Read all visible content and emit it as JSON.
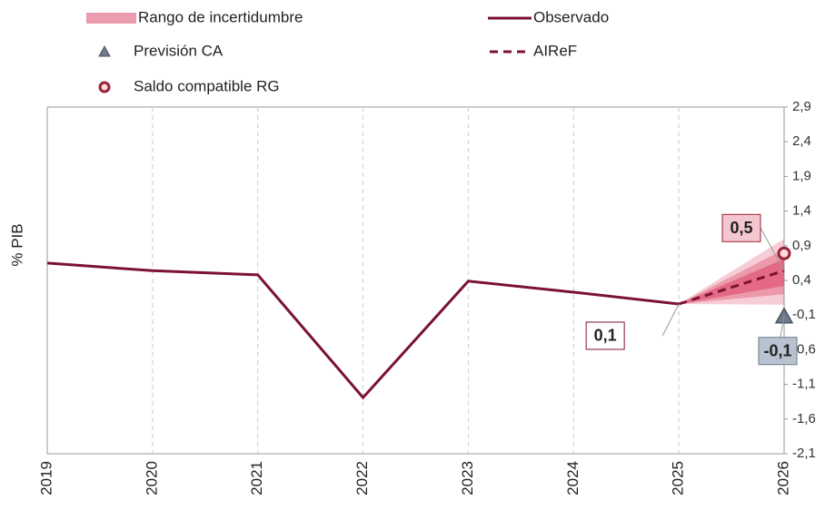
{
  "chart_data": {
    "type": "line",
    "y_label": "% PIB",
    "categories": [
      "2019",
      "2020",
      "2021",
      "2022",
      "2023",
      "2024",
      "2025",
      "2026"
    ],
    "ylim": [
      -2.1,
      2.9
    ],
    "yticks": [
      {
        "value": 2.9,
        "label": "2,9"
      },
      {
        "value": 2.4,
        "label": "2,4"
      },
      {
        "value": 1.9,
        "label": "1,9"
      },
      {
        "value": 1.4,
        "label": "1,4"
      },
      {
        "value": 0.9,
        "label": "0,9"
      },
      {
        "value": 0.4,
        "label": "0,4"
      },
      {
        "value": -0.1,
        "label": "-0,1"
      },
      {
        "value": -0.6,
        "label": "-0,6"
      },
      {
        "value": -1.1,
        "label": "-1,1"
      },
      {
        "value": -1.6,
        "label": "-1,6"
      },
      {
        "value": -2.1,
        "label": "-2,1"
      }
    ],
    "grid": true,
    "series": [
      {
        "name": "Rango de incertidumbre",
        "kind": "band",
        "color": "#e05a78",
        "bands": [
          {
            "low": [
              null,
              null,
              null,
              null,
              null,
              null,
              0.06,
              0.05
            ],
            "high": [
              null,
              null,
              null,
              null,
              null,
              null,
              0.06,
              1.0
            ]
          },
          {
            "low": [
              null,
              null,
              null,
              null,
              null,
              null,
              0.06,
              0.2
            ],
            "high": [
              null,
              null,
              null,
              null,
              null,
              null,
              0.06,
              0.85
            ]
          },
          {
            "low": [
              null,
              null,
              null,
              null,
              null,
              null,
              0.06,
              0.32
            ],
            "high": [
              null,
              null,
              null,
              null,
              null,
              null,
              0.06,
              0.71
            ]
          }
        ]
      },
      {
        "name": "Observado",
        "kind": "line",
        "color": "#7b1230",
        "values": [
          0.65,
          0.54,
          0.48,
          -1.29,
          0.39,
          0.23,
          0.06,
          null
        ],
        "value_labels": [
          null,
          null,
          null,
          null,
          null,
          null,
          "0,1",
          null
        ]
      },
      {
        "name": "Previsión CA",
        "kind": "triangle",
        "color": "#6f7a8a",
        "values": [
          null,
          null,
          null,
          null,
          null,
          null,
          null,
          -0.12
        ],
        "value_labels": [
          null,
          null,
          null,
          null,
          null,
          null,
          null,
          "-0,1"
        ]
      },
      {
        "name": "AIReF",
        "kind": "dashed",
        "color": "#7b1230",
        "values": [
          null,
          null,
          null,
          null,
          null,
          null,
          0.06,
          0.54
        ],
        "value_labels": [
          null,
          null,
          null,
          null,
          null,
          null,
          null,
          "0,5"
        ]
      },
      {
        "name": "Saldo compatible RG",
        "kind": "circle",
        "color": "#9b2335",
        "values": [
          null,
          null,
          null,
          null,
          null,
          null,
          null,
          0.79
        ]
      }
    ]
  }
}
